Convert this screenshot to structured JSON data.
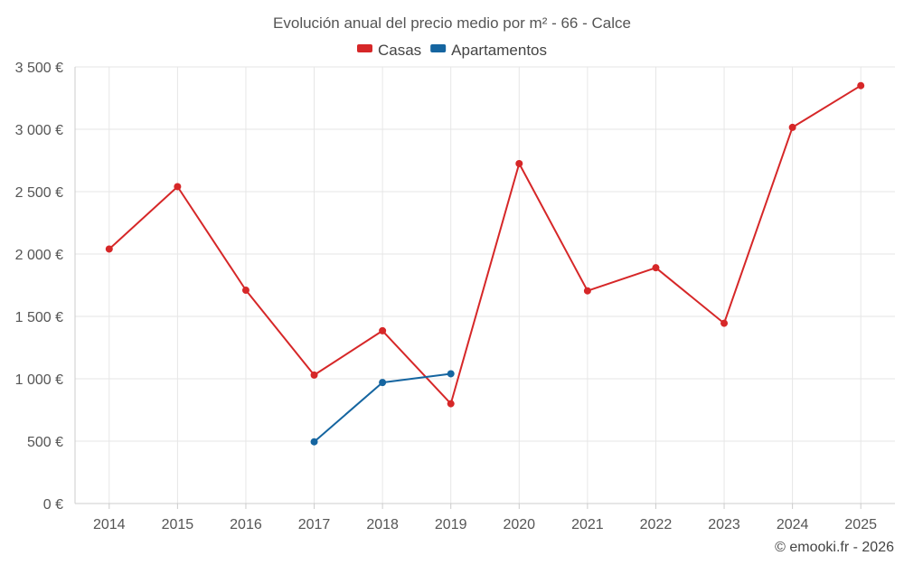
{
  "chart_data": {
    "type": "line",
    "title": "Evolución anual del precio medio por m² - 66 - Calce",
    "categories": [
      "2014",
      "2015",
      "2016",
      "2017",
      "2018",
      "2019",
      "2020",
      "2021",
      "2022",
      "2023",
      "2024",
      "2025"
    ],
    "series": [
      {
        "name": "Casas",
        "color": "#d62728",
        "values": [
          2040,
          2540,
          1710,
          1030,
          1385,
          800,
          2725,
          1705,
          1890,
          1445,
          3015,
          3350
        ]
      },
      {
        "name": "Apartamentos",
        "color": "#1565a0",
        "values": [
          null,
          null,
          null,
          495,
          970,
          1040,
          null,
          null,
          null,
          null,
          null,
          null
        ]
      }
    ],
    "y_ticks": [
      "0 €",
      "500 €",
      "1 000 €",
      "1 500 €",
      "2 000 €",
      "2 500 €",
      "3 000 €",
      "3 500 €"
    ],
    "y_tick_values": [
      0,
      500,
      1000,
      1500,
      2000,
      2500,
      3000,
      3500
    ],
    "ylim": [
      0,
      3500
    ],
    "xlabel": "",
    "ylabel": "",
    "grid": true,
    "legend_position": "top-center"
  },
  "credit": "© emooki.fr - 2026"
}
